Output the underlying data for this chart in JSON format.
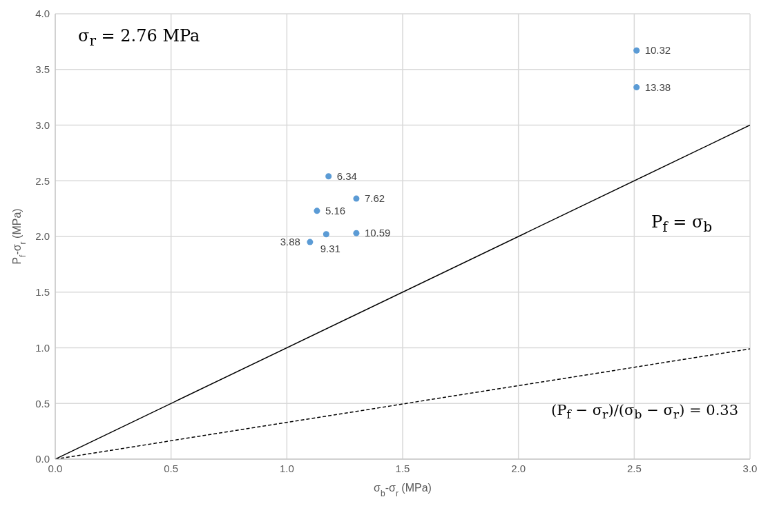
{
  "chart_data": {
    "type": "scatter",
    "xlabel": "σ$_{b}$-σ$_{r}$ (MPa)",
    "ylabel": "P$_{f}$-σ$_{r}$ (MPa)",
    "xlim": [
      0,
      3
    ],
    "xticks": [
      {
        "value": 0,
        "label": "0.0"
      },
      {
        "value": 0.5,
        "label": "0.5"
      },
      {
        "value": 1,
        "label": "1.0"
      },
      {
        "value": 1.5,
        "label": "1.5"
      },
      {
        "value": 2,
        "label": "2.0"
      },
      {
        "value": 2.5,
        "label": "2.5"
      },
      {
        "value": 3,
        "label": "3.0"
      }
    ],
    "ylim": [
      0,
      4
    ],
    "yticks": [
      {
        "value": 0,
        "label": "0.0"
      },
      {
        "value": 0.5,
        "label": "0.5"
      },
      {
        "value": 1,
        "label": "1.0"
      },
      {
        "value": 1.5,
        "label": "1.5"
      },
      {
        "value": 2,
        "label": "2.0"
      },
      {
        "value": 2.5,
        "label": "2.5"
      },
      {
        "value": 3,
        "label": "3.0"
      },
      {
        "value": 3.5,
        "label": "3.5"
      },
      {
        "value": 4,
        "label": "4.0"
      }
    ],
    "grid": true,
    "marker": "circle",
    "series": [
      {
        "color": "#5b9bd5",
        "x": [
          2.51,
          2.51,
          1.18,
          1.3,
          1.13,
          1.3,
          1.17,
          1.1
        ],
        "values": [
          3.67,
          3.34,
          2.54,
          2.34,
          2.23,
          2.03,
          2.02,
          1.95
        ]
      },
      {
        "type": "line",
        "marker": "none",
        "color": "#000000",
        "line_style": "solid",
        "x": [
          0,
          3
        ],
        "values": [
          0,
          3
        ]
      },
      {
        "type": "line",
        "marker": "none",
        "color": "#000000",
        "line_style": "dashed",
        "x": [
          0,
          3
        ],
        "values": [
          0,
          0.99
        ]
      }
    ],
    "annotations": [
      "σ$_{r}$ = 2.76 MPa",
      "P$_{f}$ = σ$_{b}$",
      "(P$_{f}$ − σ$_{r}$)/(σ$_{b}$ − σ$_{r}$) = 0.33",
      {
        "text": "10.32",
        "x": 2.51,
        "y": 3.67
      },
      {
        "text": "13.38",
        "x": 2.51,
        "y": 3.34
      },
      {
        "text": "6.34",
        "x": 1.18,
        "y": 2.54
      },
      {
        "text": "7.62",
        "x": 1.3,
        "y": 2.34
      },
      {
        "text": "5.16",
        "x": 1.13,
        "y": 2.23
      },
      {
        "text": "10.59",
        "x": 1.3,
        "y": 2.03
      },
      {
        "text": "9.31",
        "x": 1.17,
        "y": 2.02
      },
      {
        "text": "3.88",
        "x": 1.1,
        "y": 1.95
      }
    ]
  }
}
